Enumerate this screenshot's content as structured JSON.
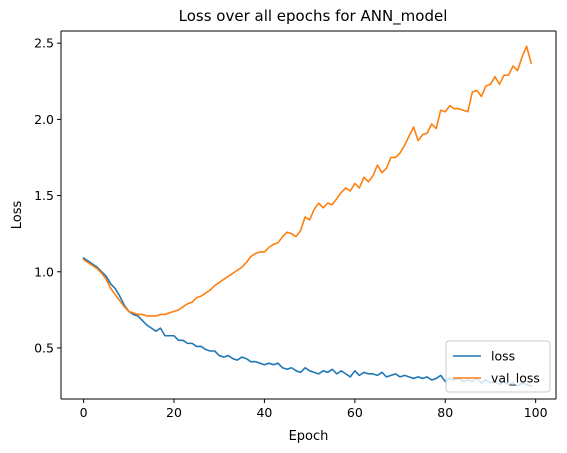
{
  "chart_data": {
    "type": "line",
    "title": "Loss over all epochs for ANN_model",
    "xlabel": "Epoch",
    "ylabel": "Loss",
    "xlim": [
      -5,
      104.5
    ],
    "ylim": [
      0.165,
      2.58
    ],
    "xticks": [
      0,
      20,
      40,
      60,
      80,
      100
    ],
    "yticks": [
      0.5,
      1.0,
      1.5,
      2.0,
      2.5
    ],
    "xtick_labels": [
      "0",
      "20",
      "40",
      "60",
      "80",
      "100"
    ],
    "ytick_labels": [
      "0.5",
      "1.0",
      "1.5",
      "2.0",
      "2.5"
    ],
    "grid": false,
    "legend": "lower-right",
    "series": [
      {
        "name": "loss",
        "color": "#1f77b4",
        "x": [
          0,
          1,
          2,
          3,
          4,
          5,
          6,
          7,
          8,
          9,
          10,
          11,
          12,
          13,
          14,
          15,
          16,
          17,
          18,
          19,
          20,
          21,
          22,
          23,
          24,
          25,
          26,
          27,
          28,
          29,
          30,
          31,
          32,
          33,
          34,
          35,
          36,
          37,
          38,
          39,
          40,
          41,
          42,
          43,
          44,
          45,
          46,
          47,
          48,
          49,
          50,
          51,
          52,
          53,
          54,
          55,
          56,
          57,
          58,
          59,
          60,
          61,
          62,
          63,
          64,
          65,
          66,
          67,
          68,
          69,
          70,
          71,
          72,
          73,
          74,
          75,
          76,
          77,
          78,
          79,
          80,
          81,
          82,
          83,
          84,
          85,
          86,
          87,
          88,
          89,
          90,
          91,
          92,
          93,
          94,
          95,
          96,
          97,
          98,
          99
        ],
        "values": [
          1.09,
          1.07,
          1.05,
          1.03,
          1.0,
          0.97,
          0.92,
          0.89,
          0.84,
          0.78,
          0.74,
          0.72,
          0.71,
          0.68,
          0.65,
          0.63,
          0.61,
          0.63,
          0.58,
          0.58,
          0.58,
          0.55,
          0.55,
          0.53,
          0.53,
          0.51,
          0.51,
          0.49,
          0.48,
          0.48,
          0.45,
          0.44,
          0.45,
          0.43,
          0.42,
          0.44,
          0.43,
          0.41,
          0.41,
          0.4,
          0.39,
          0.4,
          0.39,
          0.4,
          0.37,
          0.36,
          0.37,
          0.35,
          0.34,
          0.37,
          0.35,
          0.34,
          0.33,
          0.35,
          0.34,
          0.36,
          0.33,
          0.35,
          0.33,
          0.31,
          0.35,
          0.32,
          0.34,
          0.33,
          0.33,
          0.32,
          0.34,
          0.31,
          0.32,
          0.33,
          0.31,
          0.32,
          0.31,
          0.3,
          0.31,
          0.3,
          0.31,
          0.29,
          0.3,
          0.32,
          0.28,
          0.3,
          0.29,
          0.3,
          0.28,
          0.29,
          0.28,
          0.3,
          0.27,
          0.29,
          0.27,
          0.28,
          0.26,
          0.28,
          0.26,
          0.27,
          0.25,
          0.27,
          0.26,
          0.25
        ]
      },
      {
        "name": "val_loss",
        "color": "#ff7f0e",
        "x": [
          0,
          1,
          2,
          3,
          4,
          5,
          6,
          7,
          8,
          9,
          10,
          11,
          12,
          13,
          14,
          15,
          16,
          17,
          18,
          19,
          20,
          21,
          22,
          23,
          24,
          25,
          26,
          27,
          28,
          29,
          30,
          31,
          32,
          33,
          34,
          35,
          36,
          37,
          38,
          39,
          40,
          41,
          42,
          43,
          44,
          45,
          46,
          47,
          48,
          49,
          50,
          51,
          52,
          53,
          54,
          55,
          56,
          57,
          58,
          59,
          60,
          61,
          62,
          63,
          64,
          65,
          66,
          67,
          68,
          69,
          70,
          71,
          72,
          73,
          74,
          75,
          76,
          77,
          78,
          79,
          80,
          81,
          82,
          83,
          84,
          85,
          86,
          87,
          88,
          89,
          90,
          91,
          92,
          93,
          94,
          95,
          96,
          97,
          98,
          99
        ],
        "values": [
          1.08,
          1.06,
          1.04,
          1.02,
          0.99,
          0.95,
          0.89,
          0.85,
          0.81,
          0.77,
          0.74,
          0.73,
          0.72,
          0.72,
          0.71,
          0.71,
          0.71,
          0.72,
          0.72,
          0.73,
          0.74,
          0.75,
          0.77,
          0.79,
          0.8,
          0.83,
          0.84,
          0.86,
          0.88,
          0.91,
          0.93,
          0.95,
          0.97,
          0.99,
          1.01,
          1.03,
          1.06,
          1.1,
          1.12,
          1.13,
          1.13,
          1.16,
          1.18,
          1.19,
          1.23,
          1.26,
          1.25,
          1.23,
          1.27,
          1.36,
          1.34,
          1.41,
          1.45,
          1.42,
          1.45,
          1.44,
          1.48,
          1.52,
          1.55,
          1.53,
          1.58,
          1.55,
          1.62,
          1.59,
          1.63,
          1.7,
          1.65,
          1.68,
          1.75,
          1.75,
          1.78,
          1.83,
          1.89,
          1.95,
          1.86,
          1.9,
          1.91,
          1.97,
          1.94,
          2.06,
          2.05,
          2.09,
          2.07,
          2.07,
          2.06,
          2.05,
          2.18,
          2.19,
          2.15,
          2.22,
          2.23,
          2.28,
          2.23,
          2.29,
          2.29,
          2.35,
          2.32,
          2.41,
          2.48,
          2.37
        ]
      }
    ]
  }
}
